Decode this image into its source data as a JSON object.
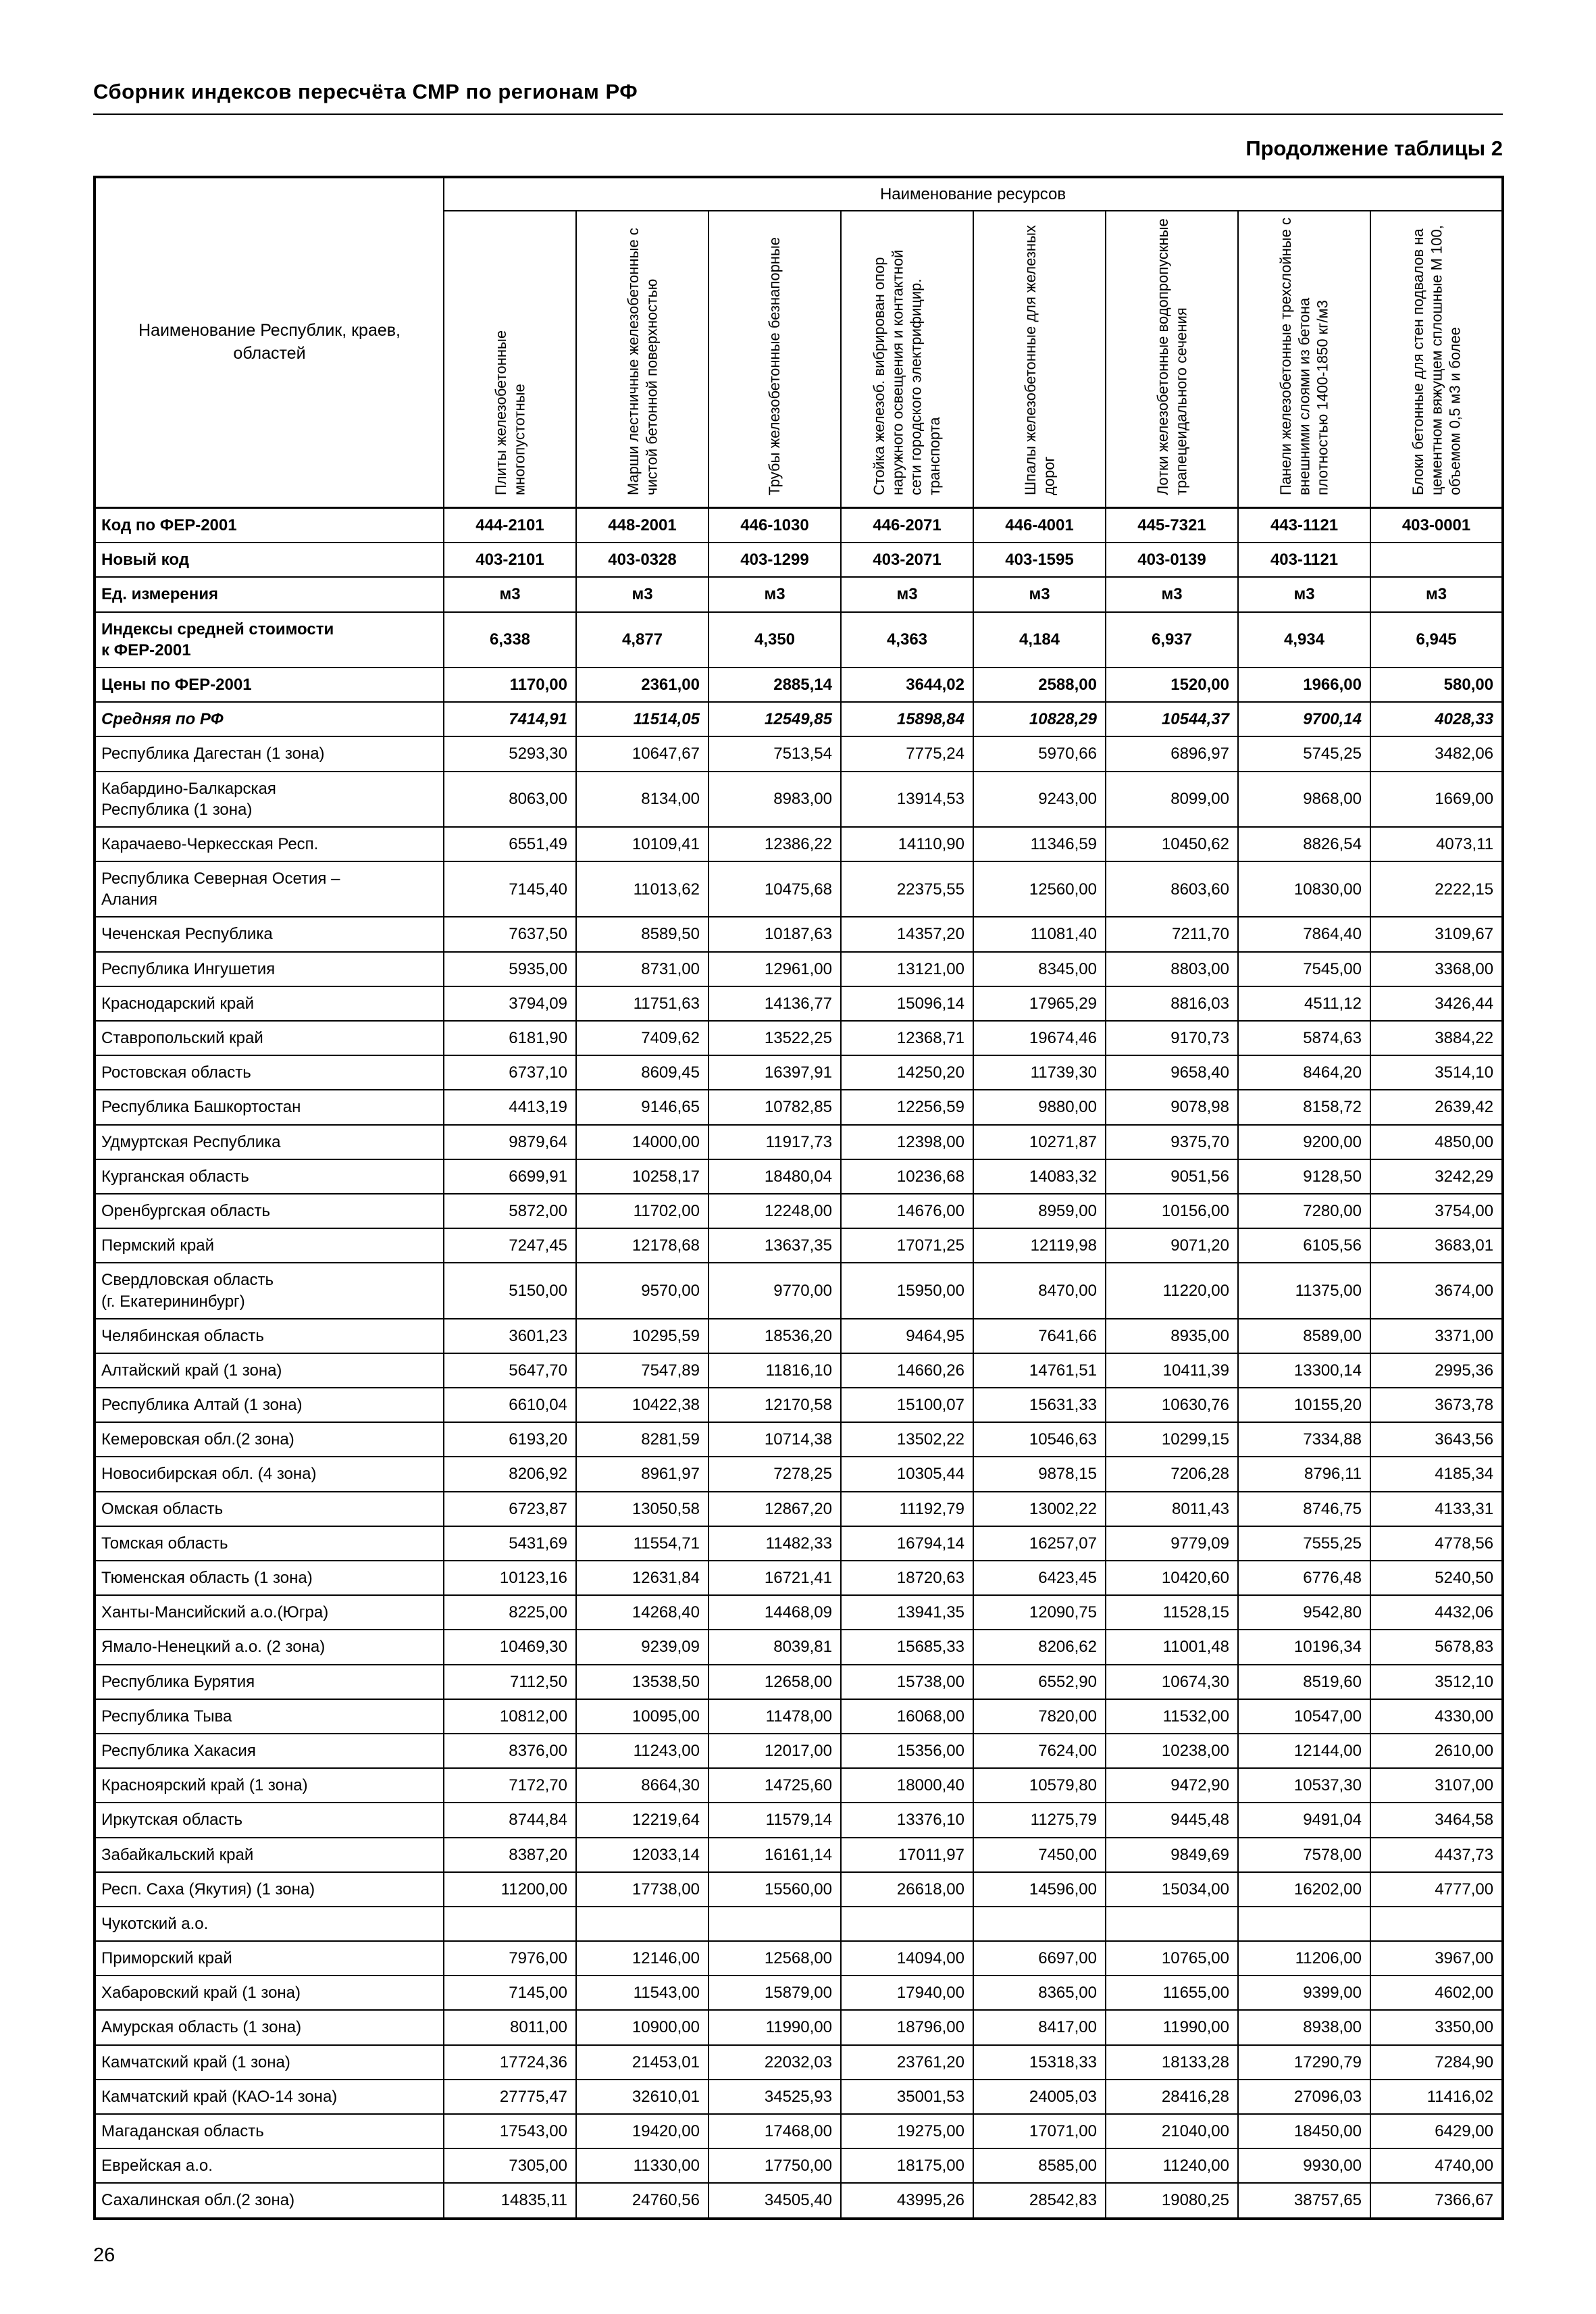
{
  "page": {
    "title": "Сборник индексов пересчёта СМР  по регионам РФ",
    "caption": "Продолжение таблицы 2",
    "page_number": "26"
  },
  "table": {
    "name_header": "Наименование Республик, краев, областей",
    "resources_header": "Наименование ресурсов",
    "columns": [
      "Плиты железобетонные многопустотные",
      "Марши лестничные железобетонные с чистой бетонной поверхностью",
      "Трубы железобетонные безнапорные",
      "Стойка железоб. вибрирован опор наружного освещения и контактной сети городского электрифицир. транспорта",
      "Шпалы железобетонные для железных дорог",
      "Лотки железобетонные водопропускные трапецеидального сечения",
      "Панели железобетонные трехслойные с внешними слоями из бетона плотностью 1400-1850 кг/м3",
      "Блоки бетонные для стен подвалов на цементном вяжущем сплошные М 100, объемом 0,5 м3 и более"
    ],
    "meta_rows": [
      {
        "name": "Код по ФЕР-2001",
        "style": "code",
        "values": [
          "444-2101",
          "448-2001",
          "446-1030",
          "446-2071",
          "446-4001",
          "445-7321",
          "443-1121",
          "403-0001"
        ]
      },
      {
        "name": "Новый код",
        "style": "code",
        "values": [
          "403-2101",
          "403-0328",
          "403-1299",
          "403-2071",
          "403-1595",
          "403-0139",
          "403-1121",
          ""
        ]
      },
      {
        "name": "Ед. измерения",
        "style": "code",
        "values": [
          "м3",
          "м3",
          "м3",
          "м3",
          "м3",
          "м3",
          "м3",
          "м3"
        ]
      },
      {
        "name": "Индексы средней стоимости\nк ФЕР-2001",
        "style": "code",
        "values": [
          "6,338",
          "4,877",
          "4,350",
          "4,363",
          "4,184",
          "6,937",
          "4,934",
          "6,945"
        ]
      },
      {
        "name": "Цены по ФЕР-2001",
        "style": "price",
        "values": [
          "1170,00",
          "2361,00",
          "2885,14",
          "3644,02",
          "2588,00",
          "1520,00",
          "1966,00",
          "580,00"
        ]
      },
      {
        "name": "Средняя по РФ",
        "style": "avg",
        "values": [
          "7414,91",
          "11514,05",
          "12549,85",
          "15898,84",
          "10828,29",
          "10544,37",
          "9700,14",
          "4028,33"
        ]
      }
    ],
    "rows": [
      {
        "name": "Республика Дагестан (1 зона)",
        "values": [
          "5293,30",
          "10647,67",
          "7513,54",
          "7775,24",
          "5970,66",
          "6896,97",
          "5745,25",
          "3482,06"
        ]
      },
      {
        "name": "Кабардино-Балкарская\nРеспублика (1 зона)",
        "values": [
          "8063,00",
          "8134,00",
          "8983,00",
          "13914,53",
          "9243,00",
          "8099,00",
          "9868,00",
          "1669,00"
        ]
      },
      {
        "name": "Карачаево-Черкесская Респ.",
        "values": [
          "6551,49",
          "10109,41",
          "12386,22",
          "14110,90",
          "11346,59",
          "10450,62",
          "8826,54",
          "4073,11"
        ]
      },
      {
        "name": "Республика Северная Осетия –\nАлания",
        "values": [
          "7145,40",
          "11013,62",
          "10475,68",
          "22375,55",
          "12560,00",
          "8603,60",
          "10830,00",
          "2222,15"
        ]
      },
      {
        "name": "Чеченская Республика",
        "values": [
          "7637,50",
          "8589,50",
          "10187,63",
          "14357,20",
          "11081,40",
          "7211,70",
          "7864,40",
          "3109,67"
        ]
      },
      {
        "name": "Республика Ингушетия",
        "values": [
          "5935,00",
          "8731,00",
          "12961,00",
          "13121,00",
          "8345,00",
          "8803,00",
          "7545,00",
          "3368,00"
        ]
      },
      {
        "name": "Краснодарский край",
        "values": [
          "3794,09",
          "11751,63",
          "14136,77",
          "15096,14",
          "17965,29",
          "8816,03",
          "4511,12",
          "3426,44"
        ]
      },
      {
        "name": "Ставропольский край",
        "values": [
          "6181,90",
          "7409,62",
          "13522,25",
          "12368,71",
          "19674,46",
          "9170,73",
          "5874,63",
          "3884,22"
        ]
      },
      {
        "name": "Ростовская область",
        "values": [
          "6737,10",
          "8609,45",
          "16397,91",
          "14250,20",
          "11739,30",
          "9658,40",
          "8464,20",
          "3514,10"
        ]
      },
      {
        "name": "Республика Башкортостан",
        "values": [
          "4413,19",
          "9146,65",
          "10782,85",
          "12256,59",
          "9880,00",
          "9078,98",
          "8158,72",
          "2639,42"
        ]
      },
      {
        "name": "Удмуртская Республика",
        "values": [
          "9879,64",
          "14000,00",
          "11917,73",
          "12398,00",
          "10271,87",
          "9375,70",
          "9200,00",
          "4850,00"
        ]
      },
      {
        "name": "Курганская область",
        "values": [
          "6699,91",
          "10258,17",
          "18480,04",
          "10236,68",
          "14083,32",
          "9051,56",
          "9128,50",
          "3242,29"
        ]
      },
      {
        "name": "Оренбургская область",
        "values": [
          "5872,00",
          "11702,00",
          "12248,00",
          "14676,00",
          "8959,00",
          "10156,00",
          "7280,00",
          "3754,00"
        ]
      },
      {
        "name": "Пермский край",
        "values": [
          "7247,45",
          "12178,68",
          "13637,35",
          "17071,25",
          "12119,98",
          "9071,20",
          "6105,56",
          "3683,01"
        ]
      },
      {
        "name": "Свердловская область\n(г. Екатерининбург)",
        "values": [
          "5150,00",
          "9570,00",
          "9770,00",
          "15950,00",
          "8470,00",
          "11220,00",
          "11375,00",
          "3674,00"
        ]
      },
      {
        "name": "Челябинская область",
        "values": [
          "3601,23",
          "10295,59",
          "18536,20",
          "9464,95",
          "7641,66",
          "8935,00",
          "8589,00",
          "3371,00"
        ]
      },
      {
        "name": "Алтайский край (1 зона)",
        "values": [
          "5647,70",
          "7547,89",
          "11816,10",
          "14660,26",
          "14761,51",
          "10411,39",
          "13300,14",
          "2995,36"
        ]
      },
      {
        "name": "Республика Алтай (1 зона)",
        "values": [
          "6610,04",
          "10422,38",
          "12170,58",
          "15100,07",
          "15631,33",
          "10630,76",
          "10155,20",
          "3673,78"
        ]
      },
      {
        "name": "Кемеровская обл.(2 зона)",
        "values": [
          "6193,20",
          "8281,59",
          "10714,38",
          "13502,22",
          "10546,63",
          "10299,15",
          "7334,88",
          "3643,56"
        ]
      },
      {
        "name": "Новосибирская обл. (4 зона)",
        "values": [
          "8206,92",
          "8961,97",
          "7278,25",
          "10305,44",
          "9878,15",
          "7206,28",
          "8796,11",
          "4185,34"
        ]
      },
      {
        "name": "Омская область",
        "values": [
          "6723,87",
          "13050,58",
          "12867,20",
          "11192,79",
          "13002,22",
          "8011,43",
          "8746,75",
          "4133,31"
        ]
      },
      {
        "name": "Томская область",
        "values": [
          "5431,69",
          "11554,71",
          "11482,33",
          "16794,14",
          "16257,07",
          "9779,09",
          "7555,25",
          "4778,56"
        ]
      },
      {
        "name": "Тюменская область (1 зона)",
        "values": [
          "10123,16",
          "12631,84",
          "16721,41",
          "18720,63",
          "6423,45",
          "10420,60",
          "6776,48",
          "5240,50"
        ]
      },
      {
        "name": "Ханты-Мансийский а.о.(Югра)",
        "values": [
          "8225,00",
          "14268,40",
          "14468,09",
          "13941,35",
          "12090,75",
          "11528,15",
          "9542,80",
          "4432,06"
        ]
      },
      {
        "name": "Ямало-Ненецкий а.о. (2 зона)",
        "values": [
          "10469,30",
          "9239,09",
          "8039,81",
          "15685,33",
          "8206,62",
          "11001,48",
          "10196,34",
          "5678,83"
        ]
      },
      {
        "name": "Республика Бурятия",
        "values": [
          "7112,50",
          "13538,50",
          "12658,00",
          "15738,00",
          "6552,90",
          "10674,30",
          "8519,60",
          "3512,10"
        ]
      },
      {
        "name": "Республика Тыва",
        "values": [
          "10812,00",
          "10095,00",
          "11478,00",
          "16068,00",
          "7820,00",
          "11532,00",
          "10547,00",
          "4330,00"
        ]
      },
      {
        "name": "Республика Хакасия",
        "values": [
          "8376,00",
          "11243,00",
          "12017,00",
          "15356,00",
          "7624,00",
          "10238,00",
          "12144,00",
          "2610,00"
        ]
      },
      {
        "name": "Красноярский край (1 зона)",
        "values": [
          "7172,70",
          "8664,30",
          "14725,60",
          "18000,40",
          "10579,80",
          "9472,90",
          "10537,30",
          "3107,00"
        ]
      },
      {
        "name": "Иркутская область",
        "values": [
          "8744,84",
          "12219,64",
          "11579,14",
          "13376,10",
          "11275,79",
          "9445,48",
          "9491,04",
          "3464,58"
        ]
      },
      {
        "name": "Забайкальский край",
        "values": [
          "8387,20",
          "12033,14",
          "16161,14",
          "17011,97",
          "7450,00",
          "9849,69",
          "7578,00",
          "4437,73"
        ]
      },
      {
        "name": "Респ. Саха (Якутия) (1 зона)",
        "values": [
          "11200,00",
          "17738,00",
          "15560,00",
          "26618,00",
          "14596,00",
          "15034,00",
          "16202,00",
          "4777,00"
        ]
      },
      {
        "name": "Чукотский а.о.",
        "values": [
          "",
          "",
          "",
          "",
          "",
          "",
          "",
          ""
        ]
      },
      {
        "name": "Приморский край",
        "values": [
          "7976,00",
          "12146,00",
          "12568,00",
          "14094,00",
          "6697,00",
          "10765,00",
          "11206,00",
          "3967,00"
        ]
      },
      {
        "name": "Хабаровский край (1 зона)",
        "values": [
          "7145,00",
          "11543,00",
          "15879,00",
          "17940,00",
          "8365,00",
          "11655,00",
          "9399,00",
          "4602,00"
        ]
      },
      {
        "name": "Амурская область (1 зона)",
        "values": [
          "8011,00",
          "10900,00",
          "11990,00",
          "18796,00",
          "8417,00",
          "11990,00",
          "8938,00",
          "3350,00"
        ]
      },
      {
        "name": "Камчатский край (1 зона)",
        "values": [
          "17724,36",
          "21453,01",
          "22032,03",
          "23761,20",
          "15318,33",
          "18133,28",
          "17290,79",
          "7284,90"
        ]
      },
      {
        "name": "Камчатский край (КАО-14 зона)",
        "values": [
          "27775,47",
          "32610,01",
          "34525,93",
          "35001,53",
          "24005,03",
          "28416,28",
          "27096,03",
          "11416,02"
        ]
      },
      {
        "name": "Магаданская область",
        "values": [
          "17543,00",
          "19420,00",
          "17468,00",
          "19275,00",
          "17071,00",
          "21040,00",
          "18450,00",
          "6429,00"
        ]
      },
      {
        "name": "Еврейская а.о.",
        "values": [
          "7305,00",
          "11330,00",
          "17750,00",
          "18175,00",
          "8585,00",
          "11240,00",
          "9930,00",
          "4740,00"
        ]
      },
      {
        "name": "Сахалинская обл.(2 зона)",
        "values": [
          "14835,11",
          "24760,56",
          "34505,40",
          "43995,26",
          "28542,83",
          "19080,25",
          "38757,65",
          "7366,67"
        ]
      }
    ]
  }
}
